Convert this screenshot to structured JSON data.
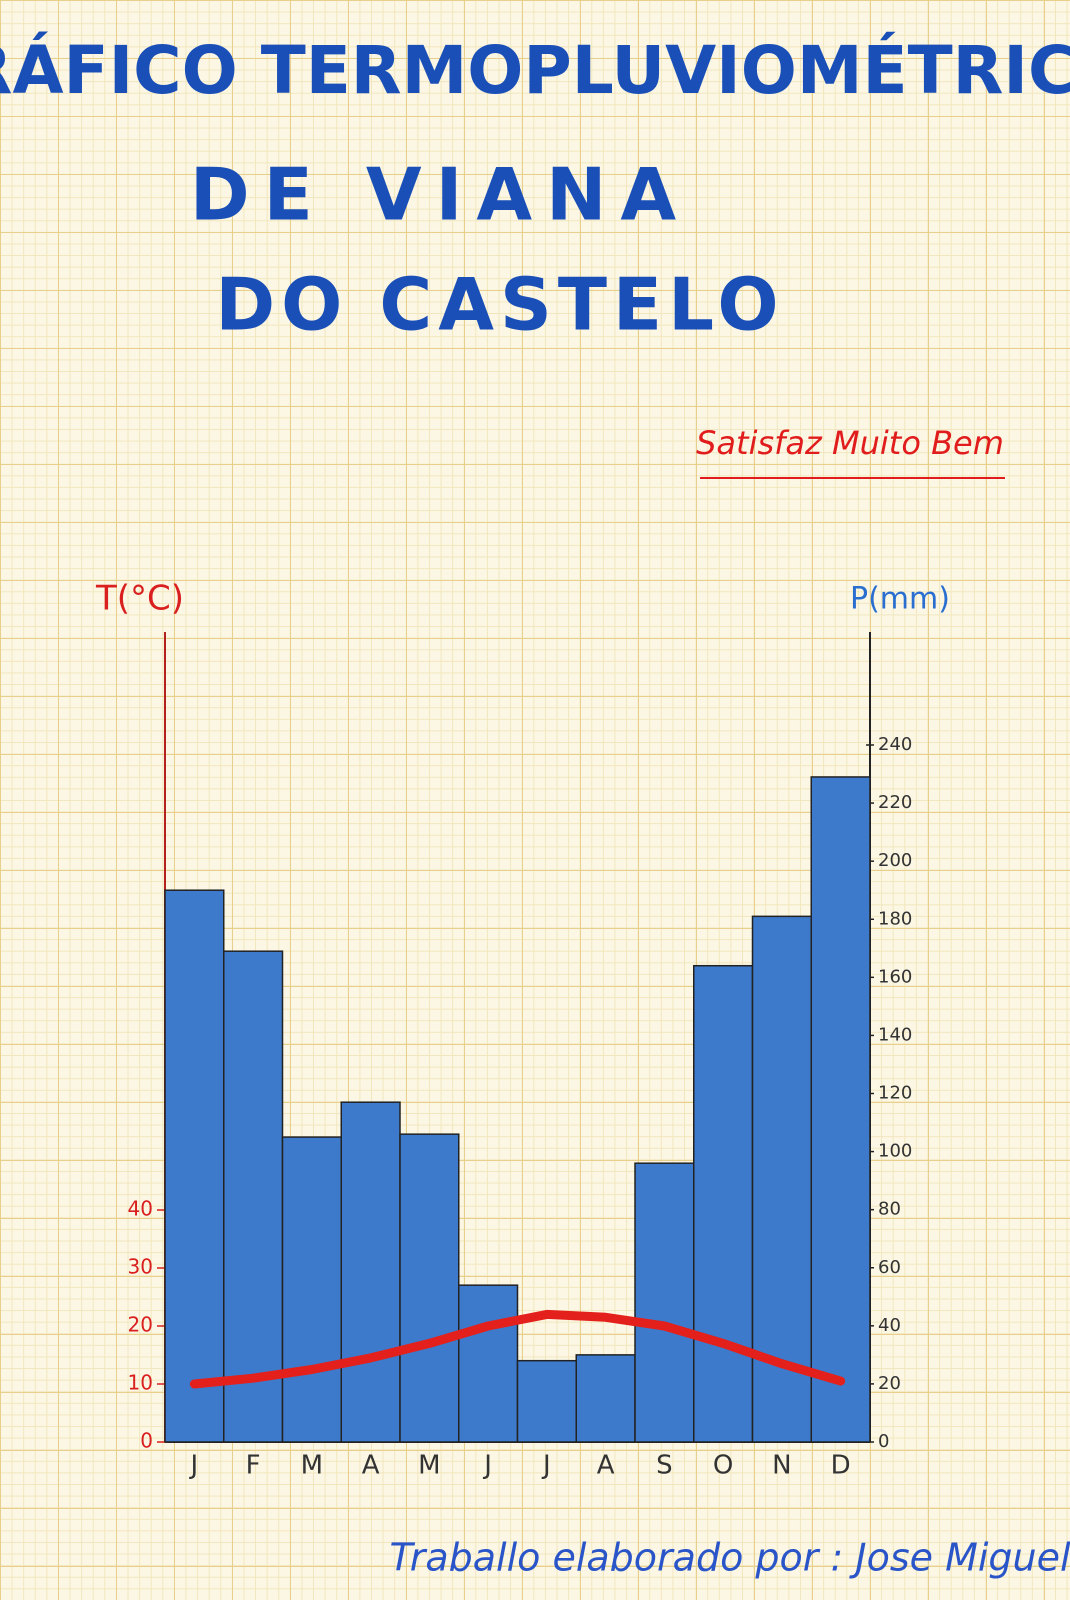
{
  "chart_data": {
    "type": "bar",
    "title": [
      "GRÁFICO TERMOPLUVIOMÉTRICO",
      "DE VIANA",
      "DO CASTELO"
    ],
    "annotation": "Satisfaz Muito Bem",
    "ylabel": "T(°C)",
    "y2label": "P(mm)",
    "footer": "Traballo elaborado por : Jose Miguel",
    "categories": [
      "J",
      "F",
      "M",
      "A",
      "M",
      "J",
      "J",
      "A",
      "S",
      "O",
      "N",
      "D"
    ],
    "series": [
      {
        "type": "bar",
        "axis": "y2",
        "color": "#3d7acb",
        "values": [
          190,
          169,
          105,
          117,
          106,
          54,
          28,
          30,
          96,
          164,
          181,
          229
        ]
      },
      {
        "type": "line",
        "color": "#e3201c",
        "values": [
          10,
          11,
          12.5,
          14.5,
          17,
          20,
          22,
          21.5,
          20,
          17,
          13.5,
          10.5
        ]
      }
    ],
    "ylim": [
      0,
      40
    ],
    "yticks": [
      0,
      10,
      20,
      30,
      40
    ],
    "y2lim": [
      0,
      240
    ],
    "y2ticks": [
      0,
      20,
      40,
      60,
      80,
      100,
      120,
      140,
      160,
      180,
      200,
      220,
      240
    ]
  }
}
